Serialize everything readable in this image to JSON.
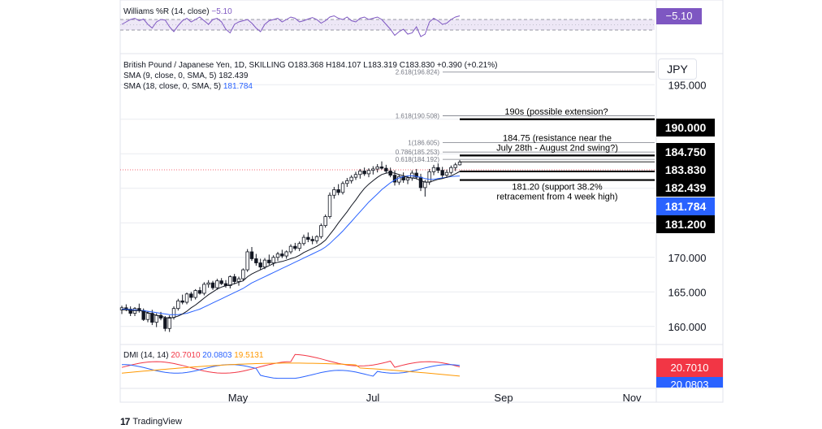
{
  "colors": {
    "grid": "#e9ebf0",
    "axis_text": "#131722",
    "up": "#131722",
    "down": "#131722",
    "sma9": "#131722",
    "sma18": "#2962ff",
    "williams": "#7e57c2",
    "williams_band": "#ede7f6",
    "dmi_plus": "#2962ff",
    "dmi_minus": "#f23645",
    "adx": "#ff9800",
    "label_dark": "#000000",
    "label_blue": "#2962ff",
    "label_red": "#f23645",
    "label_purple": "#7e57c2",
    "fib": "#787b86",
    "last_price_line": "#f23645"
  },
  "williams": {
    "legend_name": "Williams %R (14, close)",
    "legend_value": "−5.10",
    "badge": "−5.10"
  },
  "main": {
    "symbol_line": "British Pound / Japanese Yen, 1D, SKILLING",
    "ohlc": {
      "o_label": "O",
      "o": "183.368",
      "h_label": "H",
      "h": "184.107",
      "l_label": "L",
      "l": "183.319",
      "c_label": "C",
      "c": "183.830",
      "change": "+0.390 (+0.21%)"
    },
    "sma9_label": "SMA (9, close, 0, SMA, 5)",
    "sma9_value": "182.439",
    "sma18_label": "SMA (18, close, 0, SMA, 5)",
    "sma18_value": "181.784",
    "currency": "JPY"
  },
  "dmi": {
    "legend_name": "DMI (14, 14)",
    "plus_value": "20.7010",
    "minus_value": "20.0803",
    "adx_value": "19.5131",
    "badge": "20.7010",
    "badge_partial": "20.0803"
  },
  "brand": "TradingView",
  "chart_data": {
    "type": "candlestick",
    "title": "British Pound / Japanese Yen, 1D, SKILLING",
    "x_ticks": [
      "May",
      "Jul",
      "Sep",
      "Nov"
    ],
    "y_ticks": [
      "195.000",
      "190.000",
      "184.750",
      "183.830",
      "182.439",
      "181.784",
      "181.200",
      "170.000",
      "165.000",
      "160.000"
    ],
    "ylim": [
      157.5,
      199.5
    ],
    "price_labels": [
      {
        "value": 190.0,
        "text": "190.000",
        "style": "dark"
      },
      {
        "value": 184.75,
        "text": "184.750",
        "style": "dark"
      },
      {
        "value": 183.83,
        "text": "183.830",
        "style": "dark"
      },
      {
        "value": 182.439,
        "text": "182.439",
        "style": "dark"
      },
      {
        "value": 181.784,
        "text": "181.784",
        "style": "blue"
      },
      {
        "value": 181.2,
        "text": "181.200",
        "style": "dark"
      }
    ],
    "axis_ticks": [
      195.0,
      170.0,
      165.0,
      160.0
    ],
    "fib_levels": [
      {
        "ratio": "2.618",
        "value": 196.824,
        "text": "2.618(196.824)"
      },
      {
        "ratio": "1.618",
        "value": 190.508,
        "text": "1.618(190.508)"
      },
      {
        "ratio": "1",
        "value": 186.605,
        "text": "1(186.605)"
      },
      {
        "ratio": "0.786",
        "value": 185.253,
        "text": "0.786(185.253)"
      },
      {
        "ratio": "0.618",
        "value": 184.192,
        "text": "0.618(184.192)"
      }
    ],
    "annotations": [
      {
        "level": 190.0,
        "lines": [
          "190s (possible extension?"
        ]
      },
      {
        "level": 184.75,
        "lines": [
          "184.75 (resistance near the",
          "July 28th - August 2nd swing?)"
        ]
      },
      {
        "level": 181.2,
        "lines": [
          "181.20 (support 38.2%",
          "retracement from 4 week high)"
        ]
      }
    ],
    "candles_ohlc": [
      [
        162.4,
        163.0,
        161.8,
        162.7
      ],
      [
        162.7,
        163.2,
        162.2,
        162.5
      ],
      [
        162.5,
        162.9,
        161.5,
        161.9
      ],
      [
        161.9,
        162.8,
        161.5,
        162.6
      ],
      [
        162.6,
        163.3,
        162.0,
        162.3
      ],
      [
        162.3,
        162.6,
        160.8,
        161.0
      ],
      [
        161.0,
        162.2,
        160.6,
        161.9
      ],
      [
        161.9,
        162.4,
        160.2,
        160.6
      ],
      [
        160.6,
        161.9,
        159.9,
        161.6
      ],
      [
        161.6,
        162.1,
        160.9,
        161.2
      ],
      [
        161.2,
        161.5,
        159.3,
        159.7
      ],
      [
        159.7,
        161.6,
        159.2,
        161.3
      ],
      [
        161.3,
        162.9,
        161.0,
        162.6
      ],
      [
        162.6,
        164.0,
        162.3,
        163.7
      ],
      [
        163.7,
        164.6,
        163.2,
        163.5
      ],
      [
        163.5,
        164.9,
        163.2,
        164.7
      ],
      [
        164.7,
        165.0,
        163.7,
        164.2
      ],
      [
        164.2,
        165.4,
        163.9,
        165.2
      ],
      [
        165.2,
        165.7,
        164.6,
        164.8
      ],
      [
        164.8,
        166.4,
        164.5,
        166.1
      ],
      [
        166.1,
        166.7,
        165.6,
        166.3
      ],
      [
        166.3,
        166.6,
        165.3,
        165.6
      ],
      [
        165.6,
        166.9,
        165.3,
        166.6
      ],
      [
        166.6,
        167.0,
        166.0,
        166.2
      ],
      [
        166.2,
        166.7,
        165.6,
        165.9
      ],
      [
        165.9,
        167.4,
        165.5,
        167.2
      ],
      [
        167.2,
        167.6,
        166.1,
        166.5
      ],
      [
        166.5,
        167.2,
        165.9,
        166.9
      ],
      [
        166.9,
        168.4,
        166.6,
        168.2
      ],
      [
        168.2,
        171.2,
        167.9,
        170.8
      ],
      [
        170.8,
        171.5,
        169.5,
        169.8
      ],
      [
        169.8,
        170.5,
        168.8,
        169.2
      ],
      [
        169.2,
        169.8,
        168.2,
        168.6
      ],
      [
        168.6,
        169.9,
        168.3,
        169.6
      ],
      [
        169.6,
        170.4,
        168.9,
        169.2
      ],
      [
        169.2,
        170.3,
        168.7,
        170.0
      ],
      [
        170.0,
        170.8,
        169.5,
        170.5
      ],
      [
        170.5,
        171.1,
        169.9,
        170.2
      ],
      [
        170.2,
        171.0,
        169.8,
        170.8
      ],
      [
        170.8,
        171.9,
        170.5,
        171.6
      ],
      [
        171.6,
        172.1,
        171.0,
        171.3
      ],
      [
        171.3,
        172.3,
        170.9,
        172.0
      ],
      [
        172.0,
        173.3,
        171.7,
        172.9
      ],
      [
        172.9,
        173.6,
        172.2,
        172.6
      ],
      [
        172.6,
        173.1,
        171.9,
        172.4
      ],
      [
        172.4,
        173.2,
        172.0,
        173.0
      ],
      [
        173.0,
        174.9,
        172.7,
        174.6
      ],
      [
        174.6,
        176.2,
        174.3,
        175.9
      ],
      [
        175.9,
        179.4,
        175.6,
        179.0
      ],
      [
        179.0,
        180.2,
        178.5,
        179.8
      ],
      [
        179.8,
        180.6,
        179.0,
        179.4
      ],
      [
        179.4,
        181.0,
        179.1,
        180.7
      ],
      [
        180.7,
        181.5,
        180.2,
        181.1
      ],
      [
        181.1,
        181.9,
        180.7,
        181.6
      ],
      [
        181.6,
        182.4,
        181.2,
        182.0
      ],
      [
        182.0,
        182.8,
        181.4,
        182.5
      ],
      [
        182.5,
        183.0,
        181.8,
        182.1
      ],
      [
        182.1,
        182.9,
        181.6,
        182.6
      ],
      [
        182.6,
        183.2,
        182.0,
        182.8
      ],
      [
        182.8,
        183.5,
        182.3,
        183.1
      ],
      [
        183.1,
        183.9,
        182.7,
        182.9
      ],
      [
        182.9,
        183.4,
        182.2,
        182.5
      ],
      [
        182.5,
        183.0,
        181.6,
        181.9
      ],
      [
        181.9,
        182.6,
        180.4,
        180.9
      ],
      [
        180.9,
        182.0,
        180.5,
        181.7
      ],
      [
        181.7,
        182.3,
        180.8,
        181.2
      ],
      [
        181.2,
        181.8,
        180.6,
        181.5
      ],
      [
        181.5,
        182.6,
        181.1,
        182.2
      ],
      [
        182.2,
        182.8,
        181.3,
        181.6
      ],
      [
        181.6,
        182.1,
        179.6,
        180.1
      ],
      [
        180.1,
        181.2,
        178.8,
        180.9
      ],
      [
        180.9,
        182.8,
        180.5,
        182.4
      ],
      [
        182.4,
        183.4,
        181.9,
        183.0
      ],
      [
        183.0,
        183.6,
        182.2,
        182.6
      ],
      [
        182.6,
        183.1,
        181.4,
        181.9
      ],
      [
        181.9,
        182.7,
        181.5,
        182.3
      ],
      [
        182.3,
        183.3,
        182.0,
        183.0
      ],
      [
        183.0,
        183.7,
        182.5,
        183.4
      ],
      [
        183.4,
        184.1,
        183.3,
        183.8
      ]
    ],
    "sma9": [
      162.4,
      162.4,
      162.3,
      162.3,
      162.3,
      162.2,
      162.0,
      161.8,
      161.6,
      161.5,
      161.3,
      161.2,
      161.3,
      161.5,
      161.8,
      162.2,
      162.7,
      163.1,
      163.6,
      164.1,
      164.6,
      165.0,
      165.4,
      165.7,
      165.9,
      166.0,
      166.2,
      166.4,
      166.6,
      167.2,
      167.6,
      167.9,
      168.2,
      168.5,
      168.8,
      169.1,
      169.3,
      169.4,
      169.6,
      169.8,
      170.0,
      170.3,
      170.7,
      171.0,
      171.3,
      171.6,
      172.0,
      172.5,
      173.3,
      174.1,
      175.0,
      175.8,
      176.6,
      177.5,
      178.3,
      179.2,
      180.0,
      180.6,
      181.1,
      181.6,
      182.0,
      182.2,
      182.3,
      182.2,
      182.0,
      181.8,
      181.6,
      181.5,
      181.4,
      181.1,
      180.9,
      180.9,
      181.1,
      181.3,
      181.4,
      181.6,
      181.8,
      182.1,
      182.439
    ],
    "sma18": [
      162.5,
      162.5,
      162.4,
      162.4,
      162.3,
      162.3,
      162.2,
      162.1,
      162.0,
      161.9,
      161.8,
      161.7,
      161.7,
      161.7,
      161.8,
      161.9,
      162.1,
      162.3,
      162.5,
      162.8,
      163.1,
      163.4,
      163.7,
      164.0,
      164.3,
      164.6,
      164.9,
      165.2,
      165.5,
      165.9,
      166.3,
      166.6,
      166.9,
      167.2,
      167.5,
      167.8,
      168.1,
      168.4,
      168.7,
      169.0,
      169.3,
      169.6,
      169.9,
      170.2,
      170.5,
      170.8,
      171.1,
      171.5,
      172.0,
      172.6,
      173.2,
      173.8,
      174.5,
      175.2,
      175.9,
      176.6,
      177.3,
      178.0,
      178.6,
      179.2,
      179.8,
      180.3,
      180.8,
      181.2,
      181.5,
      181.7,
      181.8,
      181.8,
      181.7,
      181.6,
      181.4,
      181.3,
      181.3,
      181.4,
      181.5,
      181.6,
      181.7,
      181.75,
      181.784
    ]
  }
}
